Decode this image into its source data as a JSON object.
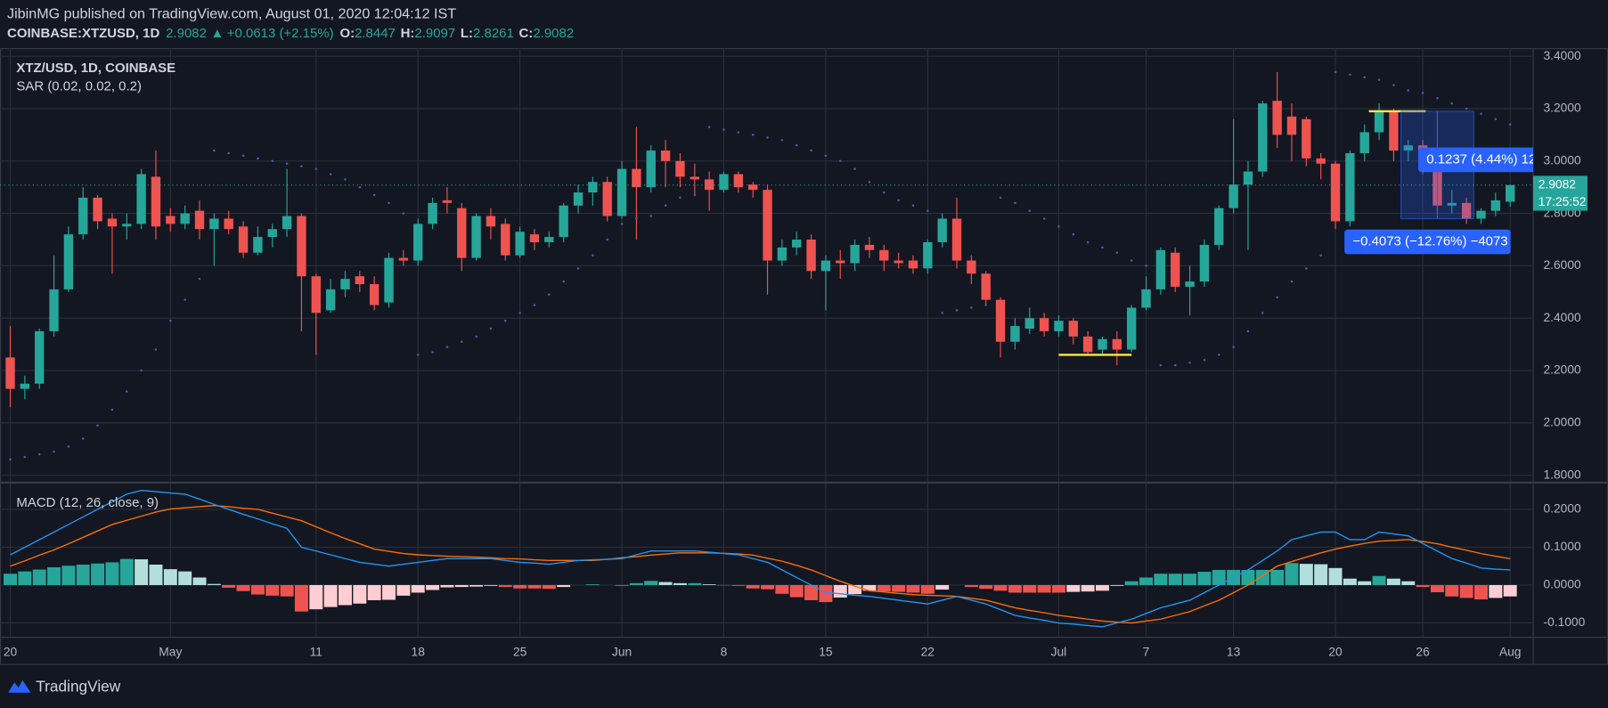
{
  "header": {
    "author_line": "JibinMG published on TradingView.com, August 01, 2020 12:04:12 IST",
    "symbol": "COINBASE:XTZUSD, 1D",
    "last": 2.9082,
    "change": "+0.0613 (+2.15%)",
    "ohlc": [
      {
        "label": "O:",
        "value": 2.8447
      },
      {
        "label": "H:",
        "value": 2.9097
      },
      {
        "label": "L:",
        "value": 2.8261
      },
      {
        "label": "C:",
        "value": 2.9082
      }
    ]
  },
  "chart_data": [
    {
      "type": "candlestick",
      "title": "XTZ/USD, 1D, COINBASE",
      "up_color": "#26a69a",
      "down_color": "#ef5350",
      "grid": true,
      "categories": [
        "20",
        null,
        null,
        null,
        null,
        null,
        null,
        null,
        null,
        null,
        null,
        "May",
        null,
        null,
        null,
        null,
        null,
        null,
        null,
        null,
        null,
        "11",
        null,
        null,
        null,
        null,
        null,
        null,
        "18",
        null,
        null,
        null,
        null,
        null,
        null,
        "25",
        null,
        null,
        null,
        null,
        null,
        null,
        "Jun",
        null,
        null,
        null,
        null,
        null,
        null,
        "8",
        null,
        null,
        null,
        null,
        null,
        null,
        "15",
        null,
        null,
        null,
        null,
        null,
        null,
        "22",
        null,
        null,
        null,
        null,
        null,
        null,
        null,
        null,
        "Jul",
        null,
        null,
        null,
        null,
        null,
        "7",
        null,
        null,
        null,
        null,
        null,
        "13",
        null,
        null,
        null,
        null,
        null,
        null,
        "20",
        null,
        null,
        null,
        null,
        null,
        "26",
        null,
        null,
        null,
        null,
        null,
        "Aug"
      ],
      "open": [
        2.25,
        2.13,
        2.15,
        2.35,
        2.51,
        2.72,
        2.86,
        2.78,
        2.75,
        2.76,
        2.94,
        2.79,
        2.76,
        2.81,
        2.74,
        2.78,
        2.75,
        2.65,
        2.71,
        2.74,
        2.79,
        2.56,
        2.43,
        2.51,
        2.56,
        2.53,
        2.46,
        2.63,
        2.62,
        2.76,
        2.85,
        2.82,
        2.63,
        2.79,
        2.76,
        2.64,
        2.72,
        2.69,
        2.71,
        2.83,
        2.88,
        2.92,
        2.79,
        2.97,
        2.9,
        3.04,
        3.0,
        2.94,
        2.93,
        2.89,
        2.95,
        2.91,
        2.89,
        2.62,
        2.67,
        2.7,
        2.58,
        2.62,
        2.61,
        2.68,
        2.66,
        2.62,
        2.62,
        2.59,
        2.69,
        2.78,
        2.62,
        2.57,
        2.47,
        2.31,
        2.36,
        2.4,
        2.35,
        2.39,
        2.33,
        2.28,
        2.32,
        2.28,
        2.44,
        2.51,
        2.65,
        2.52,
        2.54,
        2.68,
        2.82,
        2.91,
        2.96,
        3.23,
        3.17,
        3.16,
        3.01,
        2.99,
        2.77,
        3.03,
        3.11,
        3.19,
        3.04,
        3.06,
        2.99,
        2.83,
        2.84,
        2.78,
        2.81,
        2.8447
      ],
      "high": [
        2.37,
        2.18,
        2.36,
        2.64,
        2.75,
        2.9,
        2.87,
        2.8,
        2.8,
        2.97,
        3.04,
        2.82,
        2.83,
        2.85,
        2.8,
        2.81,
        2.77,
        2.75,
        2.76,
        2.97,
        2.8,
        2.57,
        2.55,
        2.58,
        2.58,
        2.56,
        2.65,
        2.66,
        2.78,
        2.86,
        2.9,
        2.84,
        2.8,
        2.82,
        2.78,
        2.75,
        2.74,
        2.73,
        2.84,
        2.91,
        2.94,
        2.94,
        3.0,
        3.13,
        3.06,
        3.08,
        3.03,
        2.99,
        2.96,
        2.96,
        2.96,
        2.92,
        2.91,
        2.7,
        2.73,
        2.72,
        2.64,
        2.66,
        2.7,
        2.71,
        2.68,
        2.65,
        2.64,
        2.7,
        2.8,
        2.86,
        2.64,
        2.58,
        2.48,
        2.4,
        2.44,
        2.42,
        2.41,
        2.4,
        2.35,
        2.33,
        2.35,
        2.45,
        2.56,
        2.67,
        2.67,
        2.6,
        2.7,
        2.83,
        3.16,
        3.0,
        3.23,
        3.34,
        3.22,
        3.17,
        3.03,
        3.0,
        3.04,
        3.14,
        3.22,
        3.2,
        3.08,
        3.08,
        3.01,
        2.89,
        2.86,
        2.82,
        2.88,
        2.9097
      ],
      "low": [
        2.06,
        2.09,
        2.13,
        2.33,
        2.5,
        2.7,
        2.74,
        2.57,
        2.7,
        2.74,
        2.7,
        2.73,
        2.74,
        2.7,
        2.6,
        2.72,
        2.63,
        2.64,
        2.67,
        2.71,
        2.35,
        2.26,
        2.42,
        2.48,
        2.5,
        2.43,
        2.44,
        2.6,
        2.6,
        2.74,
        2.8,
        2.58,
        2.62,
        2.7,
        2.62,
        2.63,
        2.66,
        2.67,
        2.69,
        2.8,
        2.83,
        2.77,
        2.78,
        2.7,
        2.88,
        2.9,
        2.9,
        2.87,
        2.81,
        2.88,
        2.88,
        2.86,
        2.49,
        2.6,
        2.64,
        2.55,
        2.43,
        2.55,
        2.58,
        2.63,
        2.58,
        2.59,
        2.57,
        2.57,
        2.67,
        2.59,
        2.53,
        2.45,
        2.25,
        2.28,
        2.34,
        2.33,
        2.33,
        2.3,
        2.26,
        2.26,
        2.22,
        2.27,
        2.43,
        2.49,
        2.5,
        2.41,
        2.52,
        2.66,
        2.8,
        2.66,
        2.94,
        3.05,
        3.0,
        2.98,
        2.93,
        2.74,
        2.75,
        3.0,
        3.08,
        3.0,
        3.0,
        2.95,
        2.8,
        2.8,
        2.76,
        2.76,
        2.79,
        2.8261
      ],
      "close": [
        2.13,
        2.15,
        2.35,
        2.51,
        2.72,
        2.86,
        2.77,
        2.75,
        2.76,
        2.95,
        2.75,
        2.76,
        2.8,
        2.74,
        2.78,
        2.74,
        2.65,
        2.71,
        2.74,
        2.79,
        2.56,
        2.42,
        2.51,
        2.55,
        2.53,
        2.45,
        2.63,
        2.62,
        2.76,
        2.84,
        2.84,
        2.63,
        2.79,
        2.75,
        2.64,
        2.73,
        2.69,
        2.71,
        2.83,
        2.88,
        2.92,
        2.79,
        2.97,
        2.9,
        3.04,
        3.0,
        2.94,
        2.93,
        2.89,
        2.95,
        2.9,
        2.89,
        2.62,
        2.67,
        2.7,
        2.58,
        2.62,
        2.61,
        2.68,
        2.66,
        2.62,
        2.61,
        2.59,
        2.69,
        2.78,
        2.62,
        2.57,
        2.47,
        2.31,
        2.37,
        2.4,
        2.35,
        2.39,
        2.33,
        2.27,
        2.32,
        2.28,
        2.44,
        2.51,
        2.66,
        2.52,
        2.54,
        2.68,
        2.82,
        2.91,
        2.96,
        3.22,
        3.1,
        3.1,
        3.01,
        2.99,
        2.77,
        3.03,
        3.11,
        3.19,
        3.04,
        3.06,
        2.99,
        2.83,
        2.84,
        2.78,
        2.81,
        2.85,
        2.9082
      ],
      "series": [
        {
          "name": "SAR (0.02, 0.02, 0.2)",
          "color": "#4a5bb8",
          "values": [
            1.86,
            1.87,
            1.88,
            1.89,
            1.91,
            1.94,
            1.99,
            2.05,
            2.12,
            2.2,
            2.28,
            2.39,
            2.47,
            2.55,
            3.04,
            3.03,
            3.02,
            3.01,
            3.0,
            2.99,
            2.98,
            2.97,
            2.95,
            2.93,
            2.9,
            2.87,
            2.84,
            2.8,
            2.26,
            2.27,
            2.29,
            2.31,
            2.33,
            2.36,
            2.39,
            2.42,
            2.45,
            2.49,
            2.54,
            2.59,
            2.64,
            2.7,
            2.76,
            2.78,
            2.79,
            2.83,
            2.86,
            2.87,
            3.13,
            3.12,
            3.11,
            3.1,
            3.09,
            3.08,
            3.06,
            3.04,
            3.02,
            3.0,
            2.97,
            2.92,
            2.88,
            2.85,
            2.83,
            2.81,
            2.42,
            2.43,
            2.44,
            2.45,
            2.86,
            2.84,
            2.81,
            2.78,
            2.75,
            2.72,
            2.69,
            2.67,
            2.65,
            2.62,
            2.6,
            2.22,
            2.22,
            2.23,
            2.24,
            2.26,
            2.29,
            2.35,
            2.42,
            2.48,
            2.54,
            2.59,
            2.64,
            3.34,
            3.33,
            3.32,
            3.31,
            3.29,
            3.27,
            3.26,
            3.24,
            3.22,
            3.2,
            3.18,
            3.16,
            3.14
          ]
        }
      ],
      "ylim": [
        1.776,
        3.431
      ],
      "yticks": [
        {
          "value": 1.8,
          "label": "1.8000"
        },
        {
          "value": 2.0,
          "label": "2.0000"
        },
        {
          "value": 2.2,
          "label": "2.2000"
        },
        {
          "value": 2.4,
          "label": "2.4000"
        },
        {
          "value": 2.6,
          "label": "2.6000"
        },
        {
          "value": 2.8,
          "label": "2.8000"
        },
        {
          "value": 3.0,
          "label": "3.0000"
        },
        {
          "value": 3.2,
          "label": "3.2000"
        },
        {
          "value": 3.4,
          "label": "3.4000"
        }
      ],
      "last_price": 2.9082,
      "last_color": "#26a69a",
      "countdown": "17:25:52",
      "levels": [
        3.19,
        2.26
      ],
      "level_color": "#ffeb3b",
      "measure": {
        "top": 3.19,
        "bottom": 2.78,
        "color": "#2962ff",
        "labels": [
          "0.1237 (4.44%) 12",
          "−0.4073 (−12.76%) −4073"
        ]
      }
    },
    {
      "type": "macd",
      "title": "MACD (12, 26, close, 9)",
      "grid": true,
      "macd": {
        "color": "#2196f3",
        "values": [
          0.08,
          0.1,
          0.12,
          0.14,
          0.16,
          0.18,
          0.2,
          0.22,
          0.24,
          0.25,
          0.247,
          0.243,
          0.24,
          0.227,
          0.213,
          0.2,
          0.187,
          0.175,
          0.162,
          0.15,
          0.1,
          0.09,
          0.08,
          0.07,
          0.06,
          0.055,
          0.05,
          0.055,
          0.06,
          0.065,
          0.07,
          0.07,
          0.07,
          0.07,
          0.065,
          0.06,
          0.058,
          0.055,
          0.06,
          0.065,
          0.067,
          0.068,
          0.07,
          0.08,
          0.09,
          0.09,
          0.09,
          0.09,
          0.087,
          0.083,
          0.08,
          0.07,
          0.06,
          0.04,
          0.02,
          0.0,
          -0.02,
          -0.023,
          -0.027,
          -0.03,
          -0.035,
          -0.04,
          -0.045,
          -0.05,
          -0.04,
          -0.03,
          -0.04,
          -0.05,
          -0.065,
          -0.08,
          -0.087,
          -0.093,
          -0.1,
          -0.103,
          -0.107,
          -0.11,
          -0.1,
          -0.09,
          -0.075,
          -0.06,
          -0.05,
          -0.04,
          -0.02,
          0.0,
          0.02,
          0.04,
          0.065,
          0.09,
          0.12,
          0.13,
          0.14,
          0.14,
          0.12,
          0.12,
          0.14,
          0.135,
          0.13,
          0.11,
          0.09,
          0.07,
          0.058,
          0.045,
          0.042,
          0.04
        ]
      },
      "signal": {
        "color": "#ff6d00",
        "values": [
          0.05,
          0.064,
          0.079,
          0.093,
          0.109,
          0.126,
          0.143,
          0.16,
          0.171,
          0.182,
          0.193,
          0.201,
          0.204,
          0.207,
          0.21,
          0.207,
          0.203,
          0.2,
          0.19,
          0.18,
          0.17,
          0.154,
          0.138,
          0.123,
          0.109,
          0.095,
          0.089,
          0.083,
          0.08,
          0.078,
          0.076,
          0.075,
          0.074,
          0.072,
          0.07,
          0.069,
          0.067,
          0.065,
          0.065,
          0.065,
          0.065,
          0.068,
          0.072,
          0.075,
          0.079,
          0.082,
          0.085,
          0.085,
          0.085,
          0.084,
          0.082,
          0.079,
          0.071,
          0.063,
          0.052,
          0.04,
          0.025,
          0.01,
          -0.003,
          -0.015,
          -0.018,
          -0.022,
          -0.025,
          -0.027,
          -0.028,
          -0.03,
          -0.035,
          -0.04,
          -0.05,
          -0.06,
          -0.067,
          -0.073,
          -0.08,
          -0.085,
          -0.09,
          -0.095,
          -0.098,
          -0.1,
          -0.095,
          -0.09,
          -0.08,
          -0.07,
          -0.055,
          -0.04,
          -0.02,
          0.0,
          0.025,
          0.05,
          0.062,
          0.074,
          0.085,
          0.095,
          0.103,
          0.11,
          0.116,
          0.118,
          0.12,
          0.115,
          0.109,
          0.1,
          0.092,
          0.083,
          0.076,
          0.07
        ]
      },
      "histogram": {
        "colors": {
          "pos_up": "#26a69a",
          "pos_down": "#b2dfdb",
          "neg_down": "#ef5350",
          "neg_up": "#ffcdd2"
        },
        "values": [
          0.03,
          0.036,
          0.041,
          0.047,
          0.051,
          0.054,
          0.057,
          0.06,
          0.069,
          0.068,
          0.054,
          0.042,
          0.036,
          0.02,
          0.003,
          -0.007,
          -0.016,
          -0.025,
          -0.028,
          -0.03,
          -0.07,
          -0.064,
          -0.058,
          -0.053,
          -0.049,
          -0.04,
          -0.039,
          -0.028,
          -0.02,
          -0.013,
          -0.006,
          -0.005,
          -0.004,
          -0.002,
          -0.005,
          -0.009,
          -0.009,
          -0.01,
          -0.005,
          0.0,
          0.002,
          0.0,
          -0.002,
          0.005,
          0.011,
          0.008,
          0.005,
          0.005,
          0.002,
          -0.001,
          -0.002,
          -0.009,
          -0.011,
          -0.023,
          -0.032,
          -0.04,
          -0.045,
          -0.033,
          -0.024,
          -0.015,
          -0.017,
          -0.018,
          -0.02,
          -0.023,
          -0.012,
          0.0,
          -0.005,
          -0.01,
          -0.015,
          -0.02,
          -0.02,
          -0.02,
          -0.02,
          -0.018,
          -0.017,
          -0.015,
          -0.002,
          0.01,
          0.02,
          0.03,
          0.03,
          0.03,
          0.035,
          0.04,
          0.04,
          0.04,
          0.04,
          0.04,
          0.058,
          0.056,
          0.055,
          0.045,
          0.017,
          0.01,
          0.024,
          0.017,
          0.01,
          -0.005,
          -0.019,
          -0.03,
          -0.034,
          -0.038,
          -0.034,
          -0.03
        ]
      },
      "ylim": [
        -0.138,
        0.268
      ],
      "yticks": [
        {
          "value": -0.1,
          "label": "-0.1000"
        },
        {
          "value": 0,
          "label": "0.0000"
        },
        {
          "value": 0.1,
          "label": "0.1000"
        },
        {
          "value": 0.2,
          "label": "0.2000"
        }
      ]
    }
  ],
  "footer": {
    "brand": "TradingView"
  }
}
